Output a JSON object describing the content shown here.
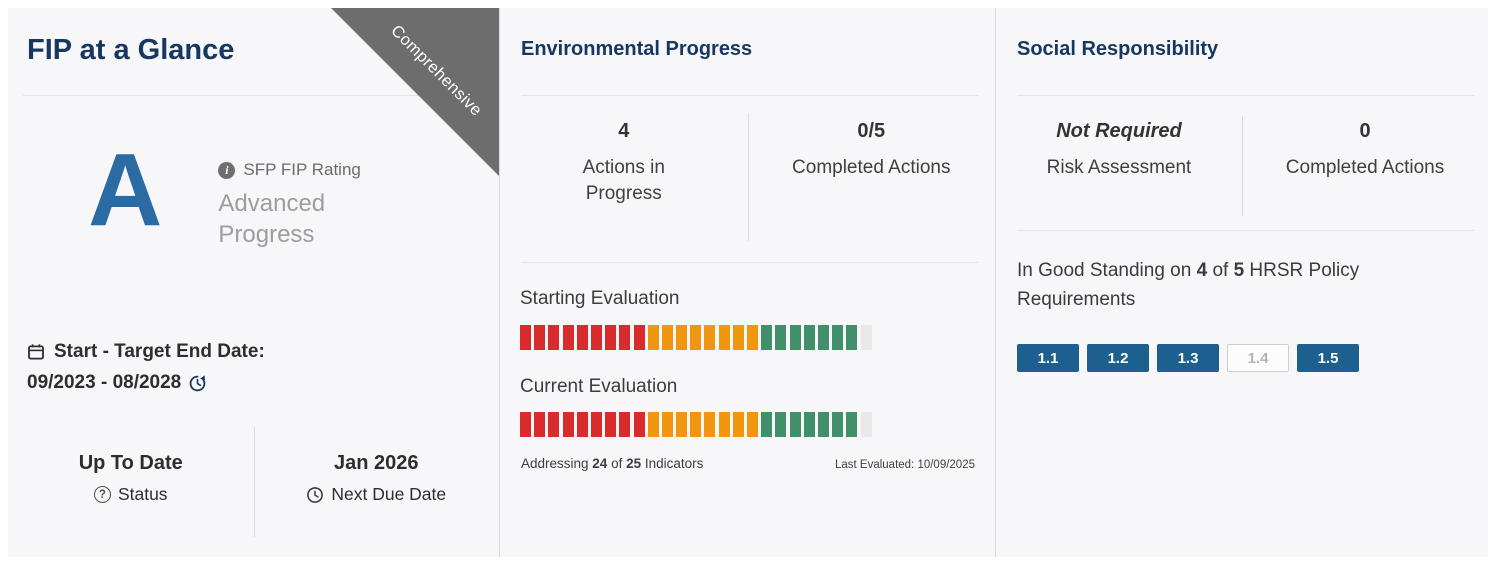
{
  "left_panel": {
    "title": "FIP at a Glance",
    "ribbon": "Comprehensive",
    "rating": {
      "grade": "A",
      "label": "SFP FIP Rating",
      "description": "Advanced Progress"
    },
    "dates": {
      "label": "Start - Target End Date:",
      "value": "09/2023 - 08/2028"
    },
    "status": {
      "value": "Up To Date",
      "label": "Status"
    },
    "next_due": {
      "value": "Jan 2026",
      "label": "Next Due Date"
    }
  },
  "environmental": {
    "title": "Environmental Progress",
    "stats": [
      {
        "value": "4",
        "label": "Actions in Progress"
      },
      {
        "value": "0/5",
        "label": "Completed Actions"
      }
    ],
    "evaluations": [
      {
        "label": "Starting Evaluation",
        "segments": [
          {
            "color": "segment_red",
            "count": 9
          },
          {
            "color": "segment_orange",
            "count": 8
          },
          {
            "color": "segment_green",
            "count": 7
          },
          {
            "color": "segment_gray",
            "count": 1
          }
        ]
      },
      {
        "label": "Current Evaluation",
        "segments": [
          {
            "color": "segment_red",
            "count": 9
          },
          {
            "color": "segment_orange",
            "count": 8
          },
          {
            "color": "segment_green",
            "count": 7
          },
          {
            "color": "segment_gray",
            "count": 1
          }
        ]
      }
    ],
    "footer": {
      "prefix": "Addressing ",
      "addressed": "24",
      "mid": " of ",
      "total": "25",
      "suffix": " Indicators",
      "last_evaluated": "Last Evaluated: 10/09/2025"
    }
  },
  "social": {
    "title": "Social Responsibility",
    "stats": [
      {
        "value": "Not Required",
        "label": "Risk Assessment"
      },
      {
        "value": "0",
        "label": "Completed Actions"
      }
    ],
    "standing": {
      "prefix": "In Good Standing on ",
      "good": "4",
      "mid": " of ",
      "total": "5",
      "suffix": " HRSR Policy Requirements"
    },
    "badges": [
      {
        "label": "1.1",
        "active": true
      },
      {
        "label": "1.2",
        "active": true
      },
      {
        "label": "1.3",
        "active": true
      },
      {
        "label": "1.4",
        "active": false
      },
      {
        "label": "1.5",
        "active": true
      }
    ]
  },
  "colors": {
    "accent_navy": "#17375e",
    "grade_blue": "#2b6ba3",
    "ribbon_gray": "#6d6d6d",
    "segment_red": "#d92b2b",
    "segment_orange": "#f0970f",
    "segment_green": "#41906a",
    "segment_gray": "#e8e8e8",
    "badge_blue": "#1d608f"
  }
}
